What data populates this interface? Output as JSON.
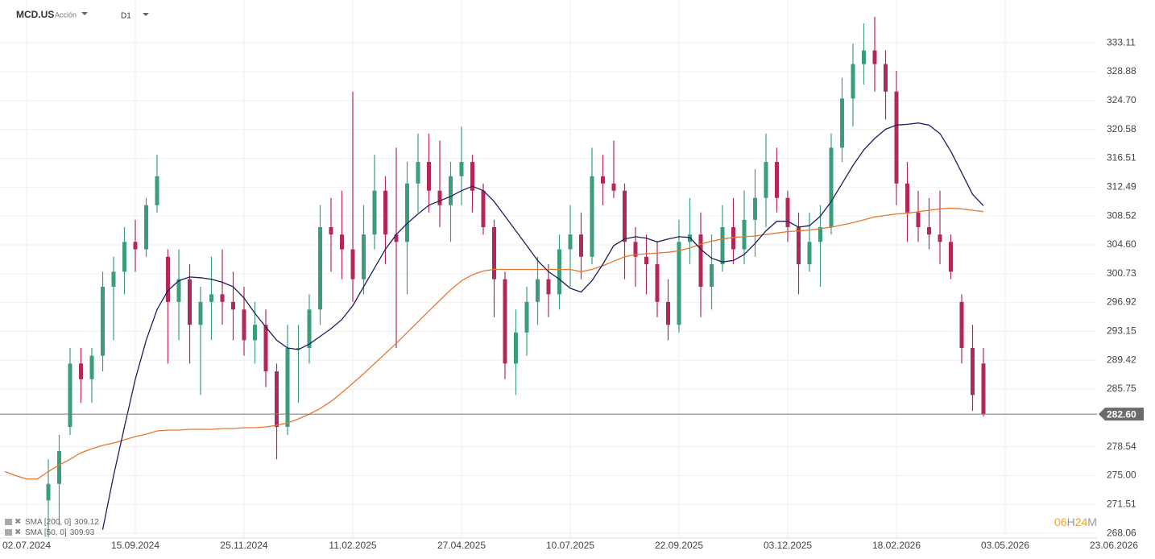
{
  "header": {
    "symbol": "MCD.US",
    "kind": "Acción",
    "timeframe": "D1"
  },
  "countdown": [
    "06",
    "H",
    "24",
    "M"
  ],
  "chart_data": {
    "type": "candlestick",
    "log_scale": true,
    "grid": true,
    "up_color": "#3a9e7c",
    "down_color": "#b3285a",
    "ylim": [
      267.5,
      339.5
    ],
    "yticks": [
      333.11,
      328.88,
      {
        "value": 324.7,
        "label": "324.70"
      },
      320.58,
      316.51,
      312.49,
      308.52,
      {
        "value": 304.6,
        "label": "304.60"
      },
      300.73,
      296.92,
      293.15,
      289.42,
      285.75,
      278.54,
      {
        "value": 275,
        "label": "275.00"
      },
      271.51,
      268.06
    ],
    "last_price": {
      "value": 282.6,
      "label": "282.60"
    },
    "categories": [
      null,
      null,
      "02.07.2024",
      null,
      null,
      null,
      null,
      null,
      null,
      null,
      null,
      null,
      "15.09.2024",
      null,
      null,
      null,
      null,
      null,
      null,
      null,
      null,
      null,
      "25.11.2024",
      null,
      null,
      null,
      null,
      null,
      null,
      null,
      null,
      null,
      "11.02.2025",
      null,
      null,
      null,
      null,
      null,
      null,
      null,
      null,
      null,
      "27.04.2025",
      null,
      null,
      null,
      null,
      null,
      null,
      null,
      null,
      null,
      "10.07.2025",
      null,
      null,
      null,
      null,
      null,
      null,
      null,
      null,
      null,
      "22.09.2025",
      null,
      null,
      null,
      null,
      null,
      null,
      null,
      null,
      null,
      "03.12.2025",
      null,
      null,
      null,
      null,
      null,
      null,
      null,
      null,
      null,
      "18.02.2026",
      null,
      null,
      null,
      null,
      null,
      null,
      null,
      null,
      null,
      "03.05.2026",
      null,
      null,
      null,
      null,
      null,
      null,
      null,
      null,
      null,
      "23.06.2026"
    ],
    "open": [
      null,
      null,
      null,
      null,
      272,
      274,
      281,
      289,
      287,
      290,
      299,
      301,
      305,
      304,
      310,
      303,
      297,
      300,
      294,
      297,
      298,
      297,
      296,
      292,
      294,
      288,
      281,
      291,
      291,
      296,
      307,
      306,
      304,
      300,
      306,
      312,
      306,
      305,
      313,
      316,
      312,
      310,
      314,
      316,
      312,
      307,
      300,
      289,
      293,
      297,
      300,
      298,
      304,
      306,
      303,
      314,
      313,
      312,
      305,
      303,
      302,
      297,
      294,
      305,
      306,
      299,
      302,
      307,
      304,
      308,
      311,
      316,
      311,
      307,
      302,
      305,
      307,
      318,
      325,
      330,
      332,
      330,
      326,
      313,
      309,
      307,
      306,
      305,
      297,
      291,
      289,
      null,
      null,
      null,
      null,
      null,
      null,
      null,
      null,
      null,
      null,
      null,
      null
    ],
    "high": [
      null,
      null,
      null,
      null,
      277,
      280,
      291,
      291,
      291,
      301,
      303,
      307,
      308,
      311,
      317,
      304,
      304,
      302,
      299,
      303,
      304,
      301,
      299,
      297,
      296,
      289,
      294,
      294,
      298,
      310,
      311,
      312,
      326,
      310,
      317,
      314,
      318,
      316,
      320,
      320,
      319,
      316,
      321,
      317,
      313,
      308,
      301,
      296,
      299,
      303,
      302,
      306,
      310,
      309,
      318,
      317,
      319,
      313,
      307,
      306,
      305,
      300,
      308,
      311,
      309,
      306,
      310,
      311,
      312,
      315,
      320,
      318,
      312,
      309,
      309,
      310,
      320,
      328,
      333,
      336,
      337,
      332,
      329,
      316,
      312,
      311,
      312,
      306,
      298,
      294,
      291,
      null,
      null,
      null,
      null,
      null,
      null,
      null,
      null,
      null,
      null,
      null,
      null
    ],
    "low": [
      null,
      null,
      null,
      null,
      267.6,
      269,
      280,
      284,
      284,
      288,
      292,
      298,
      301,
      303,
      309,
      289,
      292,
      289,
      285,
      292,
      294,
      292,
      290,
      289,
      286,
      277,
      280,
      284,
      289,
      294,
      301,
      300,
      297,
      298,
      304,
      302,
      291,
      298,
      309,
      309,
      307,
      305,
      310,
      309,
      306,
      295,
      287,
      285,
      290,
      294,
      295,
      296,
      299,
      300,
      302,
      310,
      311,
      300,
      299,
      298,
      295,
      292,
      293,
      302,
      295,
      296,
      301,
      302,
      302,
      303,
      307,
      309,
      305,
      298,
      301,
      299,
      306,
      316,
      321,
      327,
      326,
      322,
      310,
      305,
      305,
      304,
      302,
      300,
      289,
      283,
      282.3,
      null,
      null,
      null,
      null,
      null,
      null,
      null,
      null,
      null,
      null,
      null,
      null
    ],
    "close": [
      null,
      null,
      null,
      null,
      274,
      278,
      289,
      287,
      290,
      299,
      301,
      305,
      304,
      310,
      314,
      297,
      300,
      294,
      297,
      298,
      297,
      296,
      292,
      294,
      288,
      281,
      291,
      291,
      296,
      307,
      306,
      304,
      300,
      306,
      312,
      306,
      305,
      313,
      316,
      312,
      310,
      314,
      316,
      312,
      307,
      300,
      289,
      293,
      297,
      300,
      298,
      304,
      306,
      303,
      314,
      313,
      312,
      305,
      303,
      302,
      297,
      294,
      305,
      306,
      299,
      302,
      307,
      304,
      308,
      311,
      316,
      311,
      307,
      302,
      305,
      307,
      318,
      325,
      330,
      332,
      330,
      326,
      313,
      309,
      307,
      306,
      305,
      301,
      291,
      285,
      282.6,
      null,
      null,
      null,
      null,
      null,
      null,
      null,
      null,
      null,
      null,
      null,
      null
    ],
    "series": [
      {
        "name": "SMA [200, 0]",
        "color": "#e8762c",
        "values": [
          275.5,
          275,
          274.6,
          274.6,
          275.5,
          276.3,
          277,
          277.8,
          278.3,
          278.7,
          279,
          279.4,
          279.8,
          280.1,
          280.5,
          280.6,
          280.6,
          280.7,
          280.7,
          280.7,
          280.8,
          280.8,
          280.9,
          280.9,
          281,
          281.2,
          281.5,
          282,
          282.6,
          283.3,
          284.2,
          285.3,
          286.5,
          287.7,
          289,
          290.3,
          291.6,
          293,
          294.4,
          295.8,
          297.2,
          298.6,
          299.8,
          300.6,
          301.1,
          301.3,
          301.3,
          301.3,
          301.3,
          301.3,
          301.3,
          301.3,
          301.3,
          301,
          301.3,
          301.8,
          302.4,
          303,
          303.3,
          303.4,
          303.5,
          303.6,
          303.8,
          304.2,
          304.7,
          305.1,
          305.4,
          305.6,
          305.7,
          305.8,
          306,
          306.2,
          306.4,
          306.5,
          306.6,
          306.8,
          307,
          307.3,
          307.6,
          308,
          308.4,
          308.6,
          308.8,
          308.9,
          309.1,
          309.3,
          309.5,
          309.6,
          309.5,
          309.3,
          309.12,
          null,
          null,
          null,
          null,
          null,
          null,
          null,
          null,
          null,
          null,
          null,
          null
        ]
      },
      {
        "name": "SMA [50, 0]",
        "color": "#1c1f5e",
        "values": [
          null,
          null,
          null,
          null,
          null,
          null,
          null,
          null,
          null,
          268.5,
          275,
          281,
          287,
          292,
          296,
          298.5,
          299.8,
          300.3,
          300.2,
          300,
          299.6,
          299,
          297.5,
          295.5,
          293.7,
          292,
          291,
          290.8,
          291.5,
          292.5,
          293.5,
          294.7,
          296.5,
          299,
          301.5,
          304,
          306,
          307.5,
          308.8,
          310,
          310.6,
          311.2,
          312,
          312.6,
          312,
          310.5,
          308.5,
          306.5,
          304.5,
          302.5,
          301,
          300,
          298.8,
          298.3,
          299.8,
          302,
          304.5,
          305.4,
          305.7,
          305.5,
          305,
          305.4,
          305.7,
          305.6,
          304,
          302.8,
          302.3,
          302.5,
          303.3,
          304.8,
          306.5,
          307.8,
          307.8,
          307,
          307.2,
          308.5,
          310.5,
          313,
          315.5,
          317.7,
          319.3,
          320.6,
          321.2,
          321.3,
          321.5,
          321.2,
          320,
          317.5,
          314.5,
          311.5,
          309.93,
          null,
          null,
          null,
          null,
          null,
          null,
          null,
          null,
          null,
          null,
          null,
          null
        ]
      }
    ]
  }
}
